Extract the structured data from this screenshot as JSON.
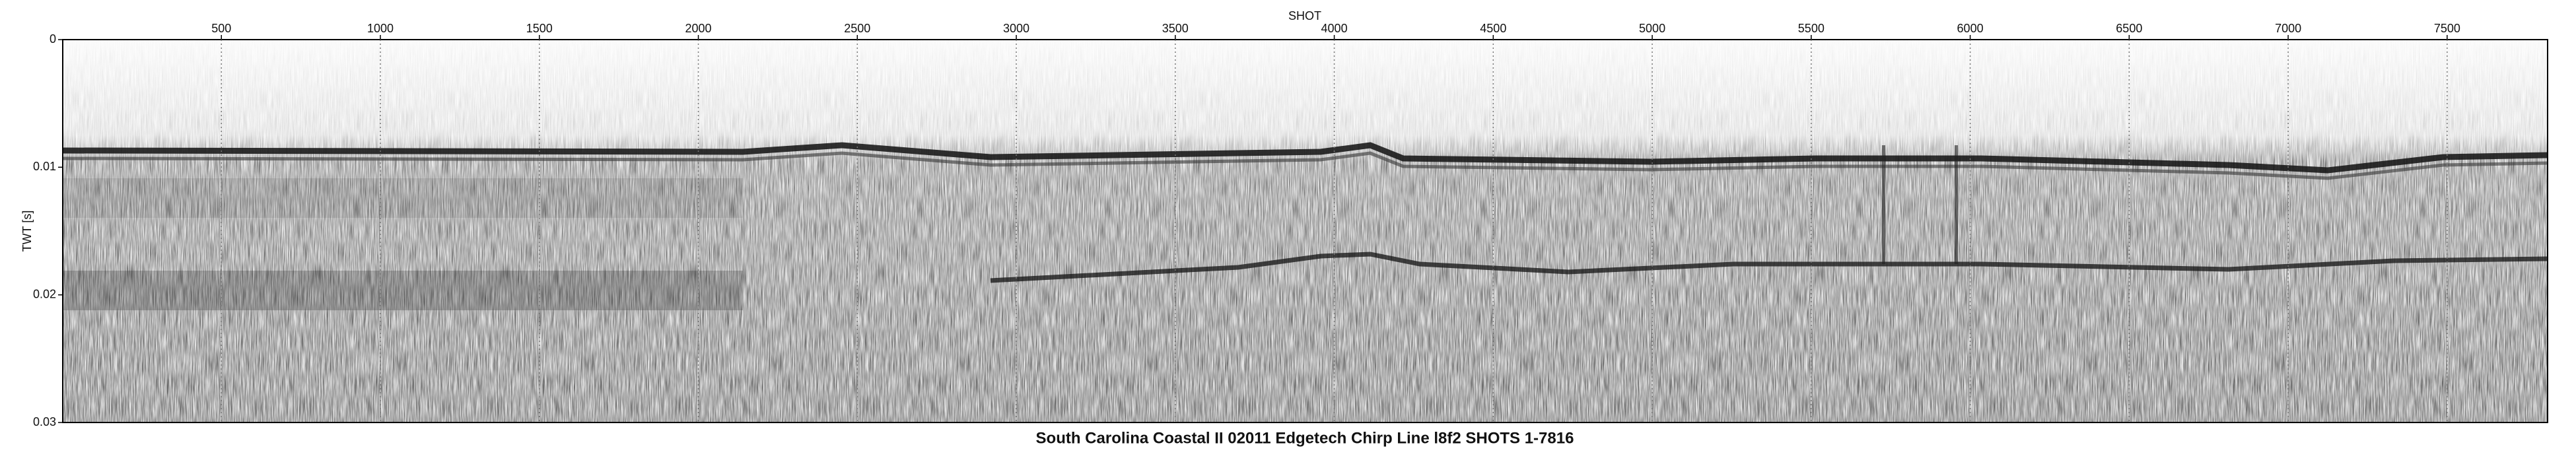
{
  "chart_data": {
    "type": "image",
    "title": "South Carolina Coastal II 02011 Edgetech Chirp Line l8f2 SHOTS 1-7816",
    "xlabel": "SHOT",
    "ylabel": "TWT [s]",
    "xlim": [
      1,
      7816
    ],
    "xticks": [
      500,
      1000,
      1500,
      2000,
      2500,
      3000,
      3500,
      4000,
      4500,
      5000,
      5500,
      6000,
      6500,
      7000,
      7500
    ],
    "ylim": [
      0,
      0.03
    ],
    "yticks": [
      0,
      0.01,
      0.02,
      0.03
    ],
    "grid": true
  }
}
